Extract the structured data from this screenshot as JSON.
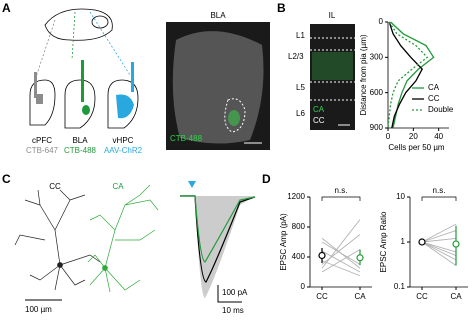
{
  "panel_labels": [
    "A",
    "B",
    "C",
    "D"
  ],
  "panel_a": {
    "regions": [
      {
        "name": "cPFC",
        "tracer": "CTB-647",
        "color": "#8c8c8c"
      },
      {
        "name": "BLA",
        "tracer": "CTB-488",
        "color": "#1f9a3a"
      },
      {
        "name": "vHPC",
        "tracer": "AAV-ChR2",
        "color": "#29a8e0"
      }
    ],
    "image_title": "BLA",
    "image_label": "CTB-488"
  },
  "panel_b": {
    "image_title": "IL",
    "layers": [
      "L1",
      "L2/3",
      "L5",
      "L6"
    ],
    "image_legend": [
      "CA",
      "CC"
    ]
  },
  "panel_c": {
    "cell_names": [
      "CC",
      "CA"
    ],
    "scale_morph": "100 µm",
    "scale_current": "100 pA",
    "scale_time": "10 ms"
  },
  "chart_data": [
    {
      "type": "profile",
      "x_label": "Cells per 50 µm",
      "y_label": "Distance from pia (µm)",
      "y": [
        0,
        100,
        200,
        300,
        400,
        500,
        600,
        700,
        800,
        900
      ],
      "series": [
        {
          "name": "CA",
          "color": "#1f9a3a",
          "style": "solid",
          "values": [
            2,
            12,
            30,
            36,
            24,
            15,
            11,
            8,
            6,
            4
          ]
        },
        {
          "name": "CC",
          "color": "#000000",
          "style": "solid",
          "values": [
            1,
            4,
            10,
            18,
            27,
            22,
            14,
            9,
            5,
            3
          ]
        },
        {
          "name": "Double",
          "color": "#1f9a3a",
          "style": "dashed",
          "values": [
            1,
            7,
            22,
            31,
            19,
            8,
            4,
            2,
            1,
            0
          ]
        }
      ],
      "xlim": [
        0,
        45
      ],
      "xticks": [
        0,
        20,
        40
      ],
      "ylim": [
        900,
        0
      ],
      "yticks": [
        0,
        300,
        600,
        900
      ]
    },
    {
      "type": "paired",
      "y_label": "EPSC Amp (pA)",
      "categories": [
        "CC",
        "CA"
      ],
      "annotation": "n.s.",
      "cc_values": [
        250,
        480,
        300,
        600,
        350,
        200,
        650
      ],
      "ca_values": [
        900,
        200,
        700,
        300,
        150,
        500,
        250
      ],
      "means": [
        420,
        390
      ],
      "error_low": [
        320,
        290
      ],
      "error_high": [
        520,
        500
      ],
      "mean_colors": [
        "#000000",
        "#1f9a3a"
      ],
      "ylim": [
        0,
        1200
      ],
      "yticks": [
        0,
        400,
        800,
        1200
      ],
      "log": false
    },
    {
      "type": "paired",
      "y_label": "EPSC Amp Ratio",
      "categories": [
        "CC",
        "CA"
      ],
      "annotation": "n.s.",
      "cc_values": [
        1,
        1,
        1,
        1,
        1,
        1,
        1
      ],
      "ca_values": [
        2.5,
        0.4,
        1.8,
        0.6,
        0.3,
        1.2,
        0.5
      ],
      "means": [
        1,
        0.9
      ],
      "error_low": [
        1,
        0.3
      ],
      "error_high": [
        1,
        2.3
      ],
      "mean_colors": [
        "#000000",
        "#1f9a3a"
      ],
      "ylim": [
        0.1,
        10
      ],
      "yticks": [
        0.1,
        1,
        10
      ],
      "log": true
    }
  ]
}
